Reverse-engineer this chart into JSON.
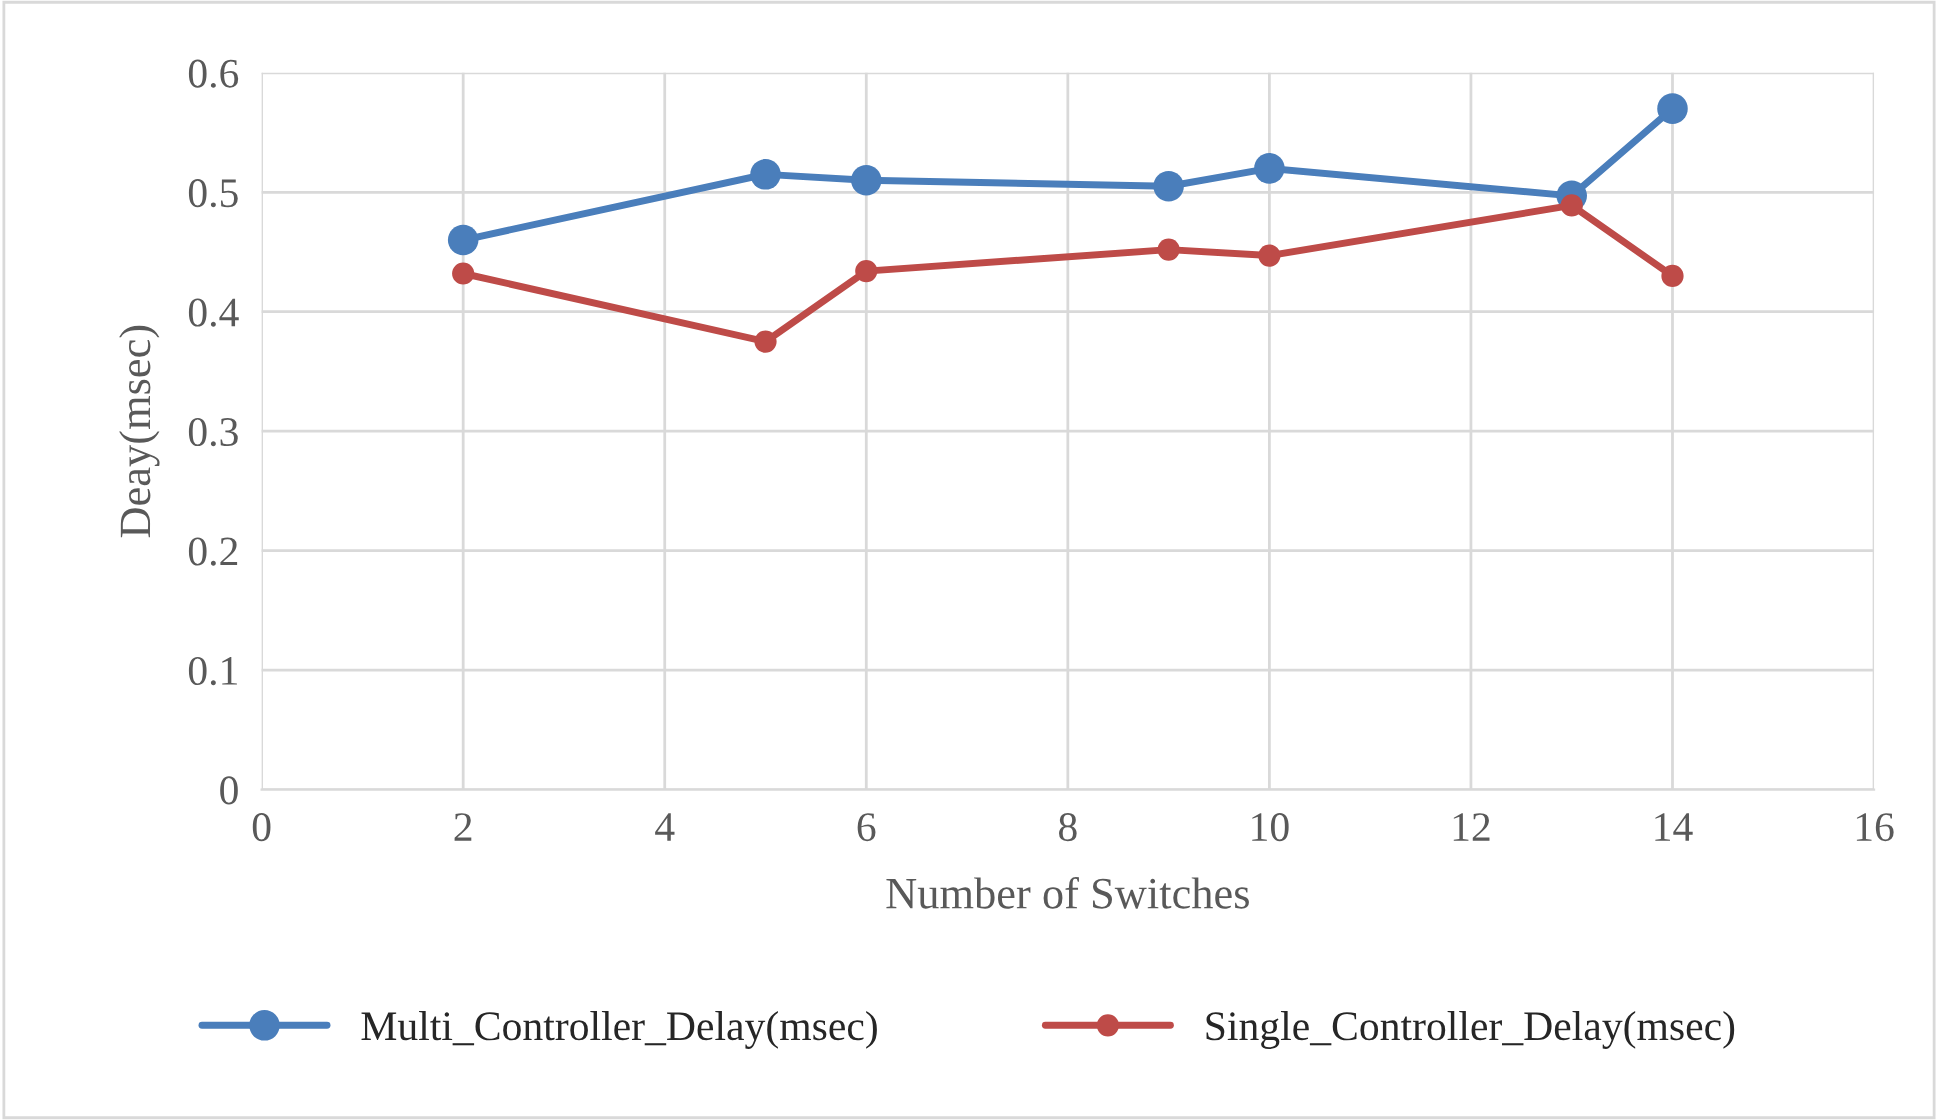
{
  "chart_data": {
    "type": "line",
    "xlabel": "Number of Switches",
    "ylabel": "Deay(msec)",
    "series": [
      {
        "name": "Multi_Controller_Delay(msec)",
        "color": "#4a7ebb",
        "x": [
          2,
          5,
          6,
          9,
          10,
          13,
          14
        ],
        "values": [
          0.46,
          0.515,
          0.51,
          0.505,
          0.52,
          0.497,
          0.57
        ]
      },
      {
        "name": "Single_Controller_Delay(msec)",
        "color": "#be4b48",
        "x": [
          2,
          5,
          6,
          9,
          10,
          13,
          14
        ],
        "values": [
          0.432,
          0.375,
          0.434,
          0.452,
          0.447,
          0.489,
          0.43
        ]
      }
    ],
    "xlim": [
      0,
      16
    ],
    "xticks": [
      0,
      2,
      4,
      6,
      8,
      10,
      12,
      14,
      16
    ],
    "ylim": [
      0,
      0.6
    ],
    "yticks": [
      0,
      0.1,
      0.2,
      0.3,
      0.4,
      0.5,
      0.6
    ],
    "grid": true,
    "legend": "bottom",
    "marker": "circle",
    "line_style": "solid"
  }
}
